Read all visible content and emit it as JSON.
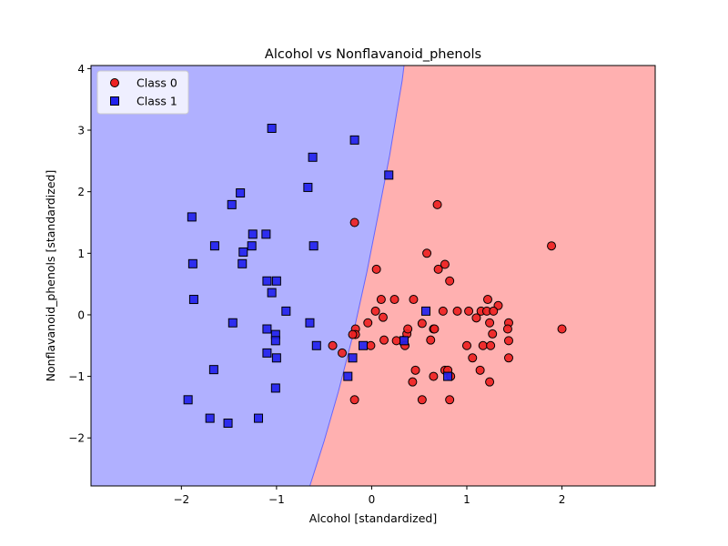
{
  "chart_data": {
    "type": "scatter",
    "title": "Alcohol vs Nonflavanoid_phenols",
    "xlabel": "Alcohol [standardized]",
    "ylabel": "Nonflavanoid_phenols [standardized]",
    "xlim": [
      -2.95,
      2.98
    ],
    "ylim": [
      -2.78,
      4.05
    ],
    "xticks": [
      -2,
      -1,
      0,
      1,
      2
    ],
    "yticks": [
      -2,
      -1,
      0,
      1,
      2,
      3,
      4
    ],
    "xtick_labels": [
      "−2",
      "−1",
      "0",
      "1",
      "2"
    ],
    "ytick_labels": [
      "−2",
      "−1",
      "0",
      "1",
      "2",
      "3",
      "4"
    ],
    "legend_position": "top-left",
    "grid": false,
    "decision_boundary": {
      "points": [
        [
          -0.65,
          -2.78
        ],
        [
          -0.5,
          -2.05
        ],
        [
          -0.35,
          -1.25
        ],
        [
          -0.2,
          -0.35
        ],
        [
          -0.05,
          0.7
        ],
        [
          0.08,
          1.72
        ],
        [
          0.19,
          2.6
        ],
        [
          0.27,
          3.35
        ],
        [
          0.32,
          3.8
        ],
        [
          0.34,
          4.05
        ]
      ],
      "left_region_class": "Class 1",
      "right_region_class": "Class 0",
      "left_region_color": "#b0b0ff",
      "right_region_color": "#ffb0b0",
      "line_color": "#6666ff"
    },
    "series": [
      {
        "name": "Class 0",
        "marker": "circle",
        "color": "#ee2222",
        "points": [
          [
            -0.18,
            1.5
          ],
          [
            0.05,
            0.74
          ],
          [
            0.1,
            0.25
          ],
          [
            0.24,
            0.25
          ],
          [
            0.44,
            0.25
          ],
          [
            0.58,
            1.0
          ],
          [
            0.69,
            1.79
          ],
          [
            0.7,
            0.74
          ],
          [
            0.77,
            0.82
          ],
          [
            0.82,
            0.55
          ],
          [
            1.89,
            1.12
          ],
          [
            2.0,
            -0.23
          ],
          [
            0.04,
            0.06
          ],
          [
            0.12,
            -0.04
          ],
          [
            -0.04,
            -0.13
          ],
          [
            -0.17,
            -0.23
          ],
          [
            -0.17,
            -0.32
          ],
          [
            -0.2,
            -0.32
          ],
          [
            -0.41,
            -0.5
          ],
          [
            -0.31,
            -0.62
          ],
          [
            -0.01,
            -0.5
          ],
          [
            0.13,
            -0.41
          ],
          [
            0.26,
            -0.42
          ],
          [
            0.34,
            -0.41
          ],
          [
            0.37,
            -0.31
          ],
          [
            0.38,
            -0.23
          ],
          [
            0.35,
            -0.5
          ],
          [
            0.53,
            -0.14
          ],
          [
            0.62,
            -0.41
          ],
          [
            0.65,
            -0.23
          ],
          [
            0.66,
            -0.23
          ],
          [
            0.75,
            0.06
          ],
          [
            0.9,
            0.06
          ],
          [
            1.02,
            0.06
          ],
          [
            1.1,
            -0.05
          ],
          [
            1.15,
            0.06
          ],
          [
            1.22,
            0.25
          ],
          [
            1.21,
            0.06
          ],
          [
            1.33,
            0.15
          ],
          [
            1.28,
            0.06
          ],
          [
            1.24,
            -0.13
          ],
          [
            1.44,
            -0.13
          ],
          [
            1.43,
            -0.23
          ],
          [
            1.27,
            -0.31
          ],
          [
            1.44,
            -0.42
          ],
          [
            1.0,
            -0.5
          ],
          [
            1.17,
            -0.5
          ],
          [
            1.25,
            -0.5
          ],
          [
            1.44,
            -0.7
          ],
          [
            1.06,
            -0.7
          ],
          [
            1.14,
            -0.9
          ],
          [
            0.46,
            -0.9
          ],
          [
            0.43,
            -1.09
          ],
          [
            0.65,
            -1.0
          ],
          [
            0.77,
            -0.9
          ],
          [
            0.8,
            -0.9
          ],
          [
            0.83,
            -1.0
          ],
          [
            1.24,
            -1.09
          ],
          [
            -0.18,
            -1.38
          ],
          [
            0.53,
            -1.38
          ],
          [
            0.82,
            -1.38
          ]
        ]
      },
      {
        "name": "Class 1",
        "marker": "square",
        "color": "#2222ee",
        "points": [
          [
            -1.05,
            3.03
          ],
          [
            -0.18,
            2.84
          ],
          [
            -0.62,
            2.56
          ],
          [
            -0.67,
            2.07
          ],
          [
            0.18,
            2.27
          ],
          [
            -1.38,
            1.98
          ],
          [
            -1.47,
            1.79
          ],
          [
            -1.89,
            1.59
          ],
          [
            -1.25,
            1.31
          ],
          [
            -1.11,
            1.31
          ],
          [
            -1.65,
            1.12
          ],
          [
            -1.26,
            1.12
          ],
          [
            -1.35,
            1.02
          ],
          [
            -0.61,
            1.12
          ],
          [
            -1.88,
            0.83
          ],
          [
            -1.36,
            0.83
          ],
          [
            -1.1,
            0.55
          ],
          [
            -1.0,
            0.55
          ],
          [
            -1.05,
            0.36
          ],
          [
            -1.87,
            0.25
          ],
          [
            -0.9,
            0.06
          ],
          [
            -1.46,
            -0.13
          ],
          [
            -0.65,
            -0.13
          ],
          [
            -1.1,
            -0.23
          ],
          [
            -1.01,
            -0.32
          ],
          [
            -1.01,
            -0.42
          ],
          [
            -0.58,
            -0.5
          ],
          [
            -0.09,
            -0.5
          ],
          [
            0.34,
            -0.42
          ],
          [
            0.57,
            0.06
          ],
          [
            -1.1,
            -0.62
          ],
          [
            -1.0,
            -0.7
          ],
          [
            -0.2,
            -0.7
          ],
          [
            -1.66,
            -0.89
          ],
          [
            -0.25,
            -1.0
          ],
          [
            0.8,
            -1.0
          ],
          [
            -1.01,
            -1.19
          ],
          [
            -1.93,
            -1.38
          ],
          [
            -1.7,
            -1.68
          ],
          [
            -1.19,
            -1.68
          ],
          [
            -1.51,
            -1.76
          ]
        ]
      }
    ]
  }
}
